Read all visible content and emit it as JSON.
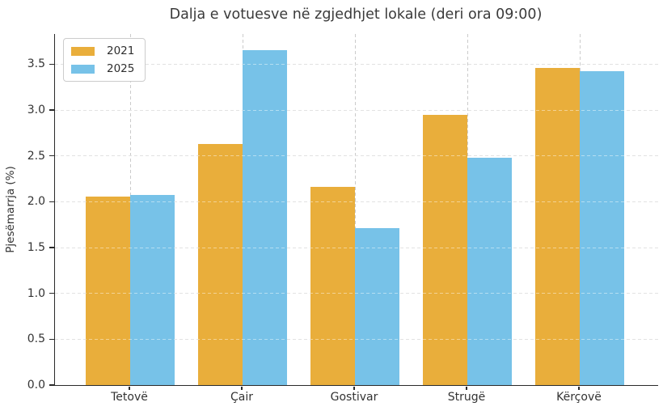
{
  "chart_data": {
    "type": "bar",
    "title": "Dalja e votuesve në zgjedhjet lokale (deri ora 09:00)",
    "xlabel": "",
    "ylabel": "Pjesëmarrja (%)",
    "categories": [
      "Tetovë",
      "Çair",
      "Gostivar",
      "Strugë",
      "Kërçovë"
    ],
    "series": [
      {
        "name": "2021",
        "color": "#E9AE3B",
        "values": [
          2.06,
          2.63,
          2.16,
          2.95,
          3.46
        ]
      },
      {
        "name": "2025",
        "color": "#77C2E8",
        "values": [
          2.07,
          3.65,
          1.71,
          2.48,
          3.42
        ]
      }
    ],
    "ylim": [
      0,
      3.83
    ],
    "yticks": [
      0.0,
      0.5,
      1.0,
      1.5,
      2.0,
      2.5,
      3.0,
      3.5
    ],
    "ytick_labels": [
      "0.0",
      "0.5",
      "1.0",
      "1.5",
      "2.0",
      "2.5",
      "3.0",
      "3.5"
    ],
    "grid": true,
    "grid_style": "dashed",
    "grid_color": "#cbcbcb",
    "legend_position": "upper left",
    "spine_color": "#2a2a2a",
    "background_color": "#ffffff"
  }
}
